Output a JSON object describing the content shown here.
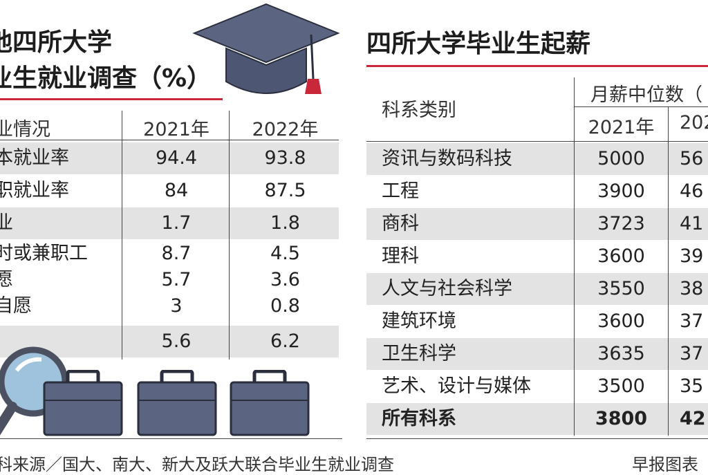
{
  "left": {
    "title_line1": "地四所大学",
    "title_line2": "业生就业调查（%）",
    "col_label": "业情况",
    "years": [
      "2021年",
      "2022年"
    ],
    "rows": [
      {
        "label": "本就业率",
        "v2021": "94.4",
        "v2022": "93.8"
      },
      {
        "label": "职就业率",
        "v2021": "84",
        "v2022": "87.5"
      },
      {
        "label": "业",
        "v2021": "1.7",
        "v2022": "1.8"
      },
      {
        "label": "时或兼职工",
        "v2021": "8.7",
        "v2022": "4.5"
      },
      {
        "label": "愿",
        "v2021": "5.7",
        "v2022": "3.6"
      },
      {
        "label": "自愿",
        "v2021": "3",
        "v2022": "0.8"
      },
      {
        "label": "",
        "v2021": "5.6",
        "v2022": "6.2"
      }
    ]
  },
  "right": {
    "title": "四所大学毕业生起薪",
    "col_label": "科系类别",
    "group_header": "月薪中位数（",
    "years": [
      "2021年",
      "202"
    ],
    "rows": [
      {
        "label": "资讯与数码科技",
        "v2021": "5000",
        "v2022": "56"
      },
      {
        "label": "工程",
        "v2021": "3900",
        "v2022": "46"
      },
      {
        "label": "商科",
        "v2021": "3723",
        "v2022": "41"
      },
      {
        "label": "理科",
        "v2021": "3600",
        "v2022": "39"
      },
      {
        "label": "人文与社会科学",
        "v2021": "3550",
        "v2022": "38"
      },
      {
        "label": "建筑环境",
        "v2021": "3600",
        "v2022": "37"
      },
      {
        "label": "卫生科学",
        "v2021": "3635",
        "v2022": "37"
      },
      {
        "label": "艺术、设计与媒体",
        "v2021": "3500",
        "v2022": "35"
      },
      {
        "label": "所有科系",
        "v2021": "3800",
        "v2022": "42"
      }
    ]
  },
  "footer": {
    "source": "科来源／国大、南大、新大及跃大联合毕业生就业调查",
    "credit": "早报图表"
  },
  "colors": {
    "accent": "#c8283a",
    "shade": "#e3e3e3",
    "icon": "#5b6582"
  },
  "chart_data": [
    {
      "type": "table",
      "title": "地四所大学业生就业调查（%）",
      "columns": [
        "业情况",
        "2021年",
        "2022年"
      ],
      "rows": [
        [
          "本就业率",
          94.4,
          93.8
        ],
        [
          "职就业率",
          84,
          87.5
        ],
        [
          "业",
          1.7,
          1.8
        ],
        [
          "时或兼职工",
          8.7,
          4.5
        ],
        [
          "愿",
          5.7,
          3.6
        ],
        [
          "自愿",
          3,
          0.8
        ],
        [
          "",
          5.6,
          6.2
        ]
      ]
    },
    {
      "type": "table",
      "title": "四所大学毕业生起薪",
      "columns": [
        "科系类别",
        "2021年",
        "202"
      ],
      "rows": [
        [
          "资讯与数码科技",
          5000,
          "56"
        ],
        [
          "工程",
          3900,
          "46"
        ],
        [
          "商科",
          3723,
          "41"
        ],
        [
          "理科",
          3600,
          "39"
        ],
        [
          "人文与社会科学",
          3550,
          "38"
        ],
        [
          "建筑环境",
          3600,
          "37"
        ],
        [
          "卫生科学",
          3635,
          "37"
        ],
        [
          "艺术、设计与媒体",
          3500,
          "35"
        ],
        [
          "所有科系",
          3800,
          "42"
        ]
      ]
    }
  ]
}
